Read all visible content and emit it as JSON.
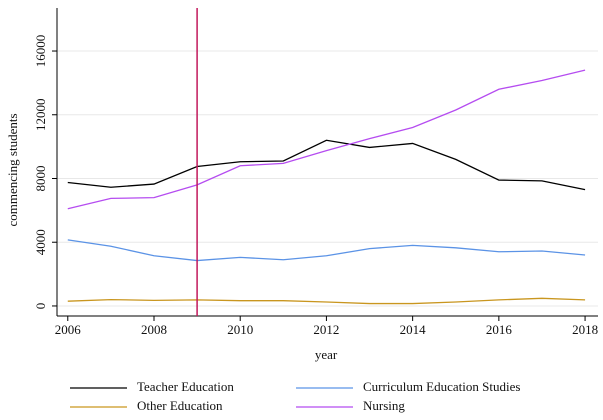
{
  "chart_data": {
    "type": "line",
    "x_label": "year",
    "y_label": "commencing students",
    "x": [
      2006,
      2007,
      2008,
      2009,
      2010,
      2011,
      2012,
      2013,
      2014,
      2015,
      2016,
      2017,
      2018
    ],
    "series": [
      {
        "name": "Teacher Education",
        "color": "#000000",
        "values": [
          7750,
          7450,
          7650,
          8750,
          9050,
          9100,
          10400,
          9950,
          10200,
          9200,
          7900,
          7850,
          7300
        ]
      },
      {
        "name": "Curriculum Education Studies",
        "color": "#5b93e6",
        "values": [
          4150,
          3750,
          3150,
          2850,
          3050,
          2900,
          3150,
          3600,
          3800,
          3650,
          3400,
          3450,
          3200
        ]
      },
      {
        "name": "Other Education",
        "color": "#c9961f",
        "values": [
          300,
          400,
          350,
          380,
          330,
          330,
          250,
          150,
          150,
          250,
          380,
          480,
          380
        ]
      },
      {
        "name": "Nursing",
        "color": "#b54cf0",
        "values": [
          6100,
          6750,
          6800,
          7600,
          8800,
          8950,
          9750,
          10500,
          11200,
          12300,
          13600,
          14150,
          14800
        ]
      }
    ],
    "vline": {
      "value": 2009,
      "color": "#c2185b"
    },
    "xlim": [
      2005.75,
      2018.3
    ],
    "xticks": [
      2006,
      2008,
      2010,
      2012,
      2014,
      2016,
      2018
    ],
    "ylim": [
      -630,
      18700
    ],
    "yticks": [
      0,
      4000,
      8000,
      12000,
      16000
    ],
    "grid": true,
    "legend": "bottom"
  }
}
